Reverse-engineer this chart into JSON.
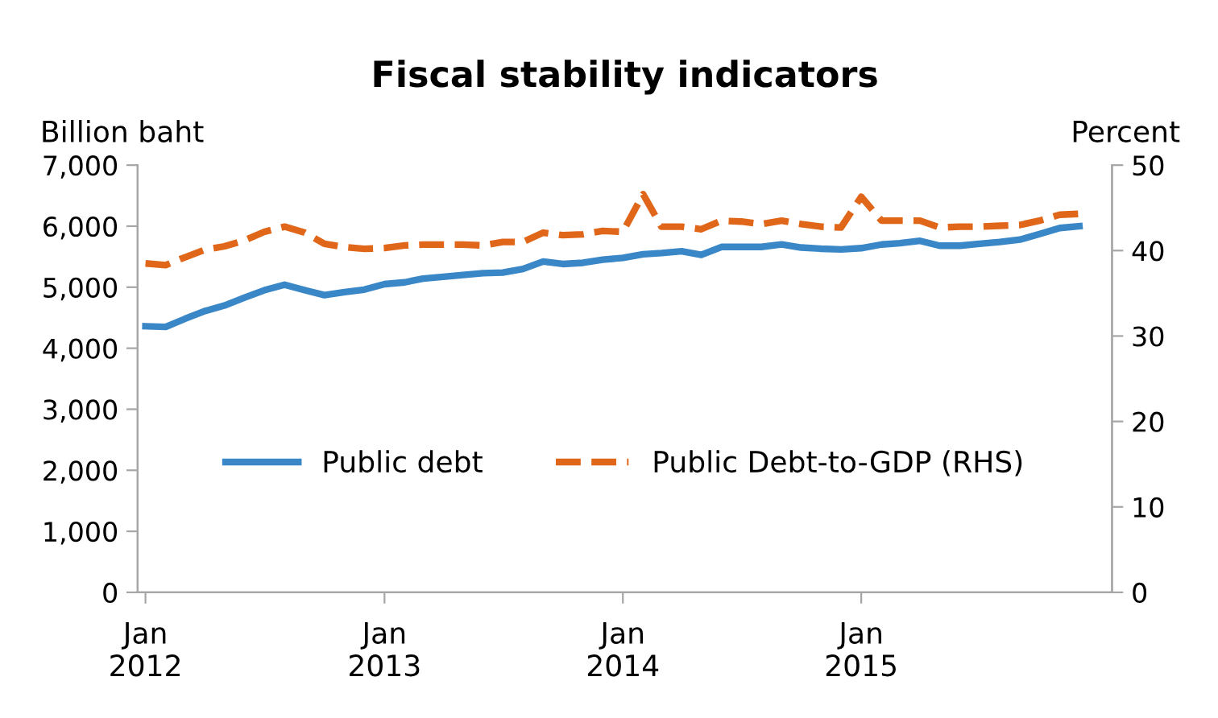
{
  "chart_data": {
    "type": "line",
    "title": "Fiscal stability indicators",
    "ylabel": "Billion baht",
    "y2label": "Percent",
    "x": [
      "2012-01",
      "2012-02",
      "2012-03",
      "2012-04",
      "2012-05",
      "2012-06",
      "2012-07",
      "2012-08",
      "2012-09",
      "2012-10",
      "2012-11",
      "2012-12",
      "2013-01",
      "2013-02",
      "2013-03",
      "2013-04",
      "2013-05",
      "2013-06",
      "2013-07",
      "2013-08",
      "2013-09",
      "2013-10",
      "2013-11",
      "2013-12",
      "2014-01",
      "2014-02",
      "2014-03",
      "2014-04",
      "2014-05",
      "2014-06",
      "2014-07",
      "2014-08",
      "2014-09",
      "2014-10",
      "2014-11",
      "2014-12",
      "2015-01",
      "2015-02",
      "2015-03",
      "2015-04",
      "2015-05",
      "2015-06",
      "2015-07",
      "2015-08",
      "2015-09",
      "2015-10",
      "2015-11",
      "2015-12"
    ],
    "series": [
      {
        "name": "Public debt",
        "color": "#3a87c8",
        "line_style": "solid",
        "values": [
          4360,
          4350,
          4480,
          4610,
          4700,
          4830,
          4950,
          5040,
          4950,
          4870,
          4920,
          4960,
          5050,
          5080,
          5140,
          5170,
          5200,
          5230,
          5240,
          5300,
          5420,
          5380,
          5400,
          5450,
          5480,
          5540,
          5560,
          5590,
          5530,
          5660,
          5660,
          5660,
          5700,
          5650,
          5630,
          5620,
          5640,
          5700,
          5720,
          5760,
          5680,
          5680,
          5710,
          5740,
          5780,
          5870,
          5970,
          6000
        ]
      },
      {
        "name": "Public Debt-to-GDP (RHS)",
        "color": "#e0661a",
        "line_style": "dashed",
        "axis": "y2",
        "values": [
          38.5,
          38.3,
          39.2,
          40.1,
          40.5,
          41.2,
          42.2,
          42.8,
          42.1,
          40.8,
          40.4,
          40.2,
          40.3,
          40.6,
          40.7,
          40.7,
          40.7,
          40.6,
          41.0,
          41.0,
          42.1,
          41.8,
          41.9,
          42.3,
          42.2,
          46.6,
          42.8,
          42.8,
          42.5,
          43.5,
          43.4,
          43.1,
          43.5,
          43.1,
          42.8,
          42.7,
          46.3,
          43.5,
          43.5,
          43.5,
          42.7,
          42.8,
          42.8,
          42.9,
          43.0,
          43.5,
          44.2,
          44.3
        ]
      }
    ],
    "xlim": [
      "2011-12-20",
      "2016-01-20"
    ],
    "xticks": [
      {
        "value": "2012-01",
        "label": "Jan\n2012"
      },
      {
        "value": "2013-01",
        "label": "Jan\n2013"
      },
      {
        "value": "2014-01",
        "label": "Jan\n2014"
      },
      {
        "value": "2015-01",
        "label": "Jan\n2015"
      }
    ],
    "ylim": [
      0,
      7000
    ],
    "yticks": [
      {
        "value": 0,
        "label": "0"
      },
      {
        "value": 1000,
        "label": "1,000"
      },
      {
        "value": 2000,
        "label": "2,000"
      },
      {
        "value": 3000,
        "label": "3,000"
      },
      {
        "value": 4000,
        "label": "4,000"
      },
      {
        "value": 5000,
        "label": "5,000"
      },
      {
        "value": 6000,
        "label": "6,000"
      },
      {
        "value": 7000,
        "label": "7,000"
      }
    ],
    "y2lim": [
      0,
      50
    ],
    "y2ticks": [
      0,
      10,
      20,
      30,
      40,
      50
    ],
    "grid": false,
    "legend": "center"
  }
}
